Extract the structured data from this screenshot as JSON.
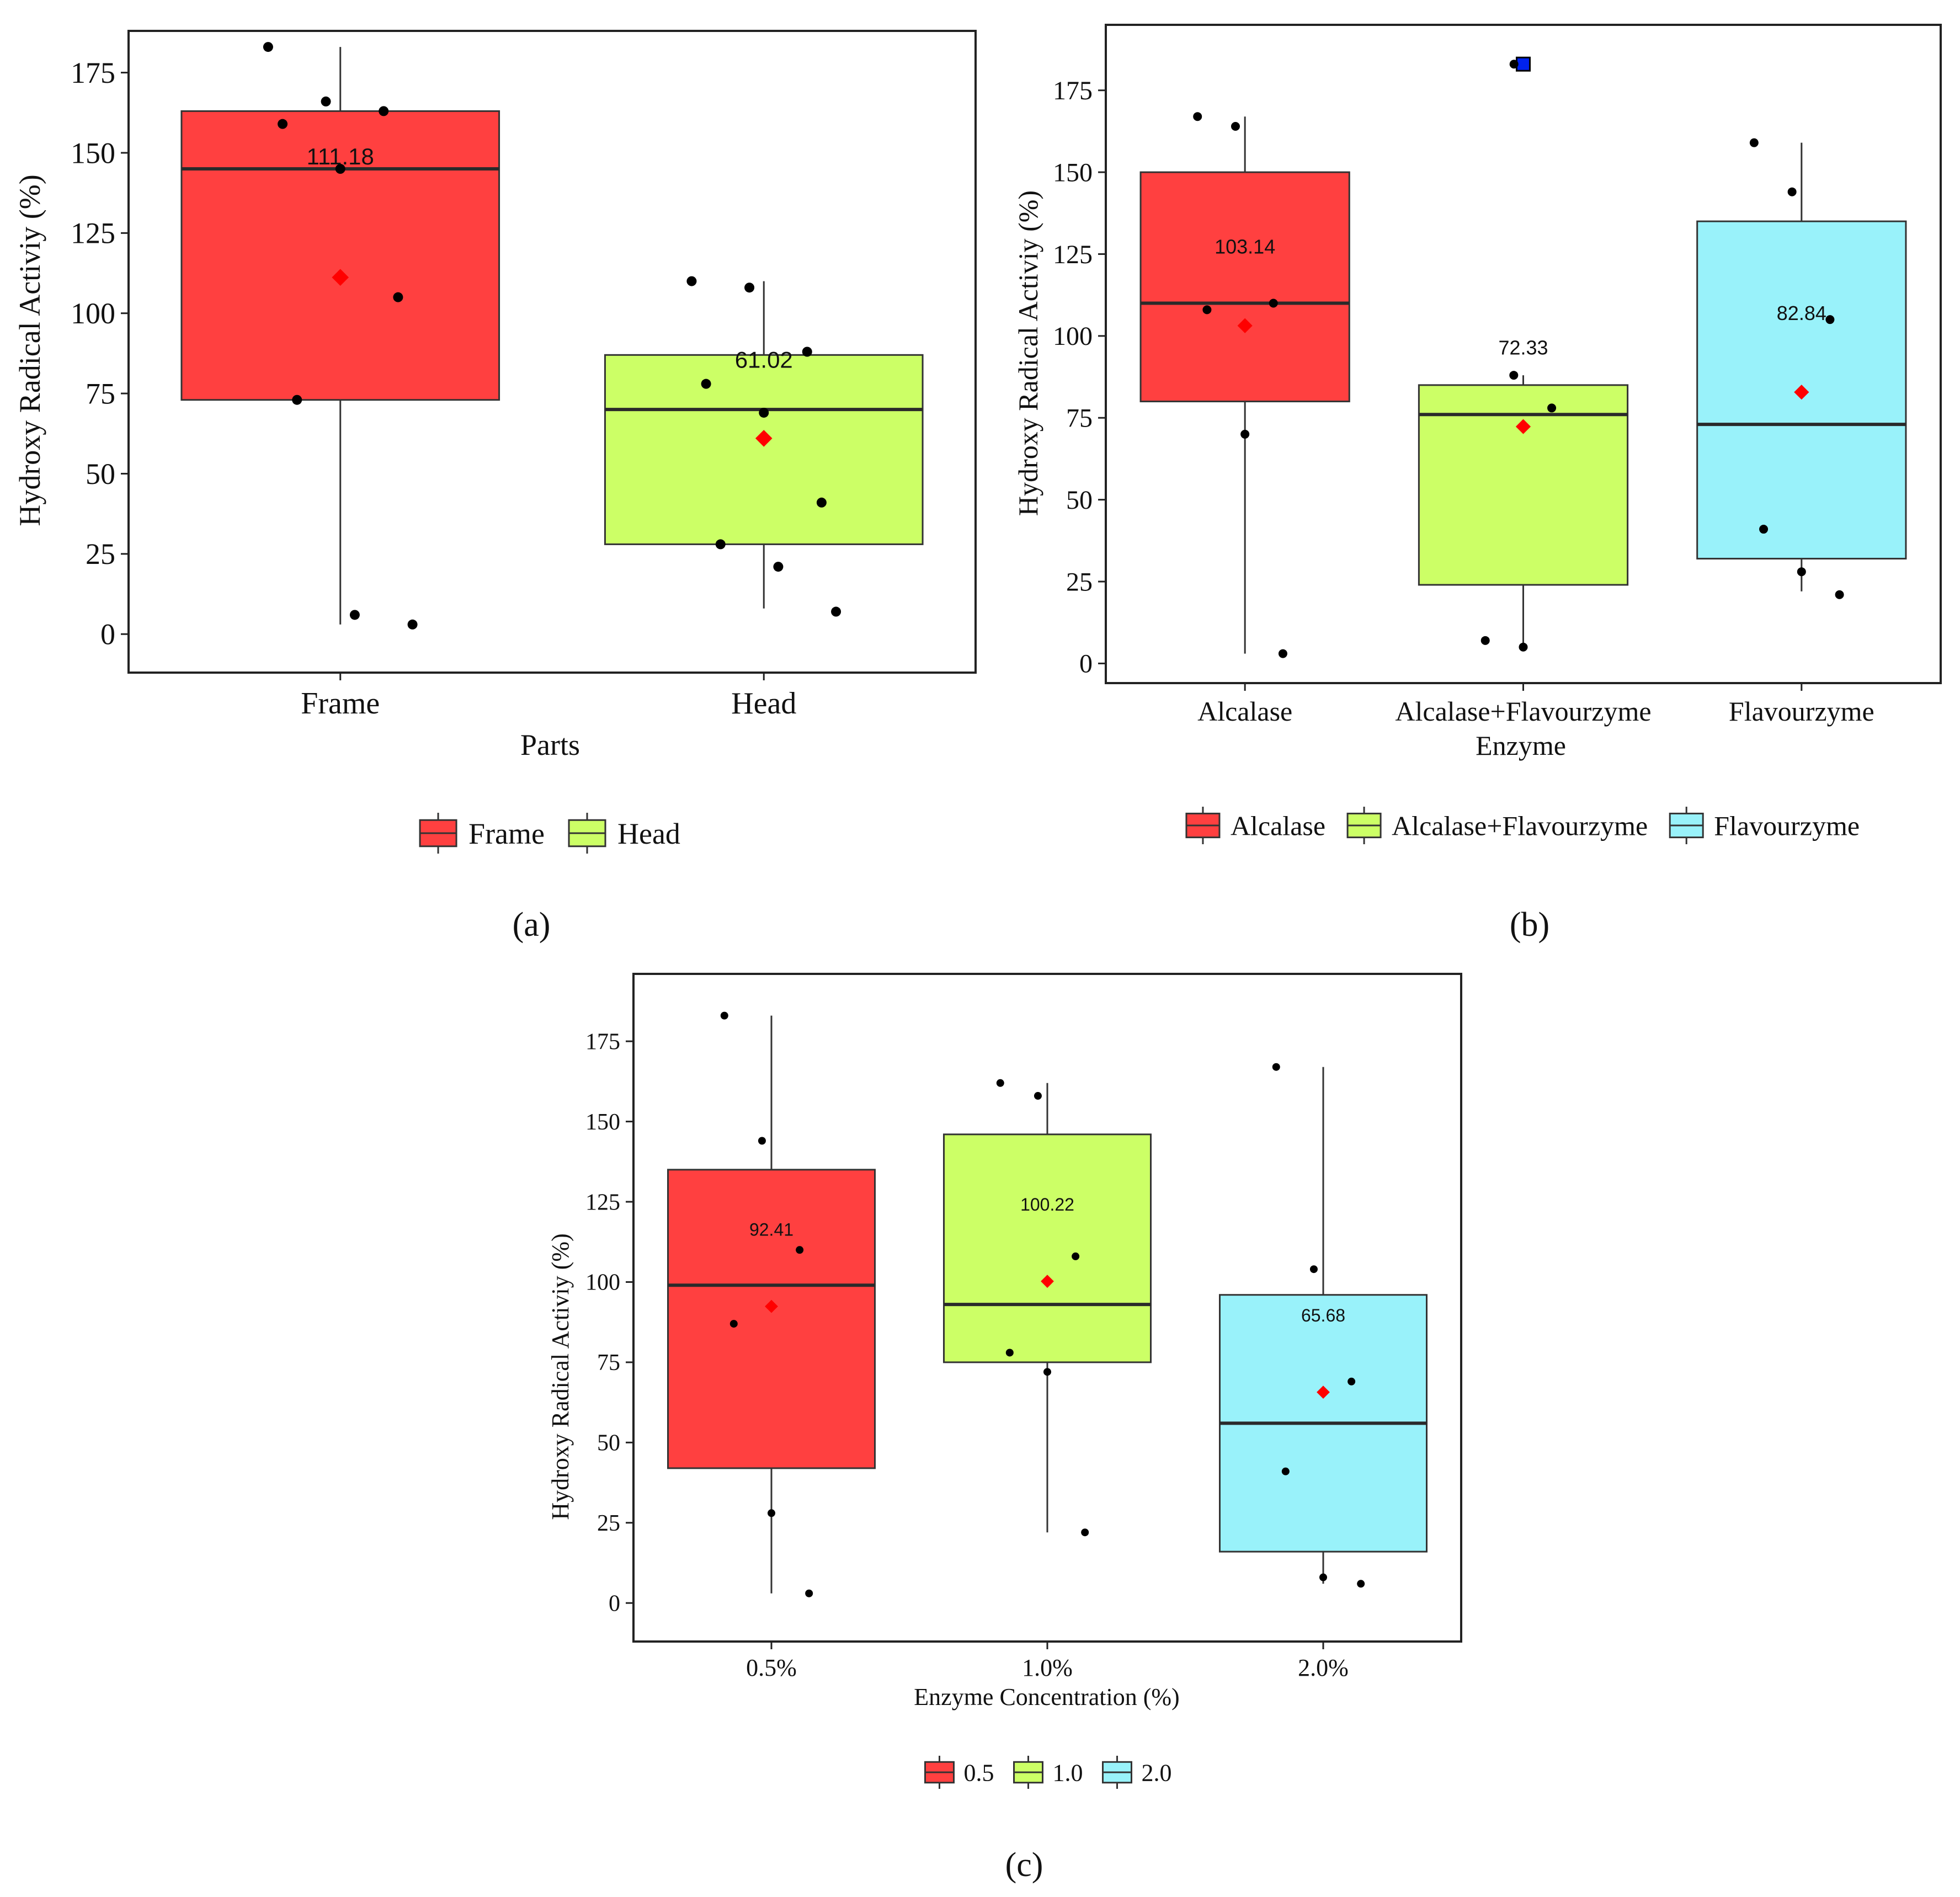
{
  "colors": {
    "c1": "#ff4040",
    "c2": "#ccff66",
    "c3": "#99f2fa",
    "point": "#000000",
    "mean": "#ff0000",
    "outlier": "#0022ee"
  },
  "chart_data": [
    {
      "id": "a",
      "type": "box",
      "panel_label": "(a)",
      "title": "",
      "xlabel": "Parts",
      "ylabel": "Hydroxy Radical Activiy (%)",
      "ylim": [
        -12,
        188
      ],
      "yticks": [
        0,
        25,
        50,
        75,
        100,
        125,
        150,
        175
      ],
      "categories": [
        "Frame",
        "Head"
      ],
      "legend": [
        "Frame",
        "Head"
      ],
      "boxes": [
        {
          "category": "Frame",
          "whisker_low": 3,
          "q1": 73,
          "median": 145,
          "q3": 163,
          "whisker_high": 183,
          "mean": 111.18,
          "mean_label": "111.18",
          "points": [
            183,
            166,
            163,
            159,
            145,
            105,
            73,
            6,
            3
          ]
        },
        {
          "category": "Head",
          "whisker_low": 8,
          "q1": 28,
          "median": 70,
          "q3": 87,
          "whisker_high": 110,
          "mean": 61.02,
          "mean_label": "61.02",
          "points": [
            110,
            108,
            88,
            78,
            69,
            41,
            28,
            21,
            7
          ]
        }
      ]
    },
    {
      "id": "b",
      "type": "box",
      "panel_label": "(b)",
      "title": "",
      "xlabel": "Enzyme",
      "ylabel": "Hydroxy Radical Activiy (%)",
      "ylim": [
        -6,
        195
      ],
      "yticks": [
        0,
        25,
        50,
        75,
        100,
        125,
        150,
        175
      ],
      "categories": [
        "Alcalase",
        "Alcalase+Flavourzyme",
        "Flavourzyme"
      ],
      "legend": [
        "Alcalase",
        "Alcalase+Flavourzyme",
        "Flavourzyme"
      ],
      "boxes": [
        {
          "category": "Alcalase",
          "whisker_low": 3,
          "q1": 80,
          "median": 110,
          "q3": 150,
          "whisker_high": 167,
          "mean": 103.14,
          "mean_label": "103.14",
          "points": [
            167,
            164,
            110,
            108,
            70,
            3
          ]
        },
        {
          "category": "Alcalase+Flavourzyme",
          "whisker_low": 6,
          "q1": 24,
          "median": 76,
          "q3": 85,
          "whisker_high": 88,
          "mean": 72.33,
          "mean_label": "72.33",
          "points": [
            183,
            88,
            78,
            7,
            5
          ],
          "outliers": [
            183
          ]
        },
        {
          "category": "Flavourzyme",
          "whisker_low": 22,
          "q1": 32,
          "median": 73,
          "q3": 135,
          "whisker_high": 159,
          "mean": 82.84,
          "mean_label": "82.84",
          "points": [
            159,
            144,
            105,
            41,
            28,
            21
          ]
        }
      ]
    },
    {
      "id": "c",
      "type": "box",
      "panel_label": "(c)",
      "title": "",
      "xlabel": "Enzyme Concentration (%)",
      "ylabel": "Hydroxy Radical Activiy (%)",
      "ylim": [
        -12,
        196
      ],
      "yticks": [
        0,
        25,
        50,
        75,
        100,
        125,
        150,
        175
      ],
      "categories": [
        "0.5%",
        "1.0%",
        "2.0%"
      ],
      "legend": [
        "0.5",
        "1.0",
        "2.0"
      ],
      "boxes": [
        {
          "category": "0.5%",
          "whisker_low": 3,
          "q1": 42,
          "median": 99,
          "q3": 135,
          "whisker_high": 183,
          "mean": 92.41,
          "mean_label": "92.41",
          "points": [
            183,
            144,
            110,
            87,
            28,
            3
          ]
        },
        {
          "category": "1.0%",
          "whisker_low": 22,
          "q1": 75,
          "median": 93,
          "q3": 146,
          "whisker_high": 162,
          "mean": 100.22,
          "mean_label": "100.22",
          "points": [
            162,
            158,
            108,
            78,
            72,
            22
          ]
        },
        {
          "category": "2.0%",
          "whisker_low": 6,
          "q1": 16,
          "median": 56,
          "q3": 96,
          "whisker_high": 167,
          "mean": 65.68,
          "mean_label": "65.68",
          "points": [
            167,
            104,
            69,
            41,
            8,
            6
          ]
        }
      ]
    }
  ]
}
